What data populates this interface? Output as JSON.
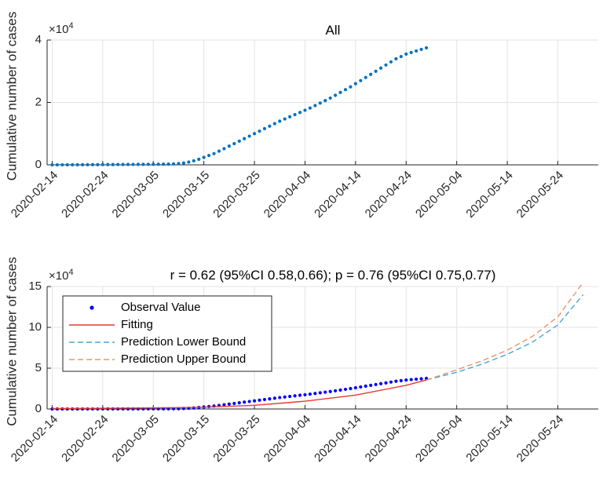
{
  "chart_data": [
    {
      "type": "scatter",
      "title": "All",
      "ylabel": "Cumulative number of cases",
      "xlabel": "",
      "y_exponent_label": "×10^4",
      "y_exponent_base": "×10",
      "y_exponent_power": "4",
      "ylim": [
        0,
        40000
      ],
      "yticks": [
        0,
        20000,
        40000
      ],
      "ytick_labels": [
        "0",
        "2",
        "4"
      ],
      "xlim": [
        "2020-02-13",
        "2020-06-01"
      ],
      "xtick_labels": [
        "2020-02-14",
        "2020-02-24",
        "2020-03-05",
        "2020-03-15",
        "2020-03-25",
        "2020-04-04",
        "2020-04-14",
        "2020-04-24",
        "2020-05-04",
        "2020-05-14",
        "2020-05-24"
      ],
      "grid": true,
      "colors": {
        "points": "#0072bd"
      },
      "series": [
        {
          "x_start": "2020-02-14",
          "x_end": "2020-04-28",
          "step_days": 1,
          "values": [
            10,
            12,
            15,
            20,
            25,
            30,
            40,
            50,
            60,
            70,
            80,
            90,
            100,
            110,
            120,
            130,
            140,
            150,
            160,
            170,
            180,
            200,
            220,
            250,
            300,
            400,
            600,
            900,
            1300,
            1800,
            2400,
            3000,
            3600,
            4400,
            5200,
            6000,
            6800,
            7600,
            8400,
            9200,
            10000,
            10800,
            11600,
            12400,
            13200,
            14000,
            14700,
            15400,
            16100,
            16800,
            17500,
            18200,
            19000,
            19800,
            20600,
            21400,
            22300,
            23200,
            24100,
            25000,
            26000,
            27000,
            28000,
            29000,
            30000,
            31000,
            32000,
            33000,
            34000,
            34700,
            35500,
            36000,
            36500,
            37000,
            37500
          ]
        }
      ]
    },
    {
      "type": "line",
      "title": "r = 0.62 (95%CI 0.58,0.66); p = 0.76 (95%CI 0.75,0.77)",
      "ylabel": "Cumulative number of cases",
      "xlabel": "",
      "y_exponent_label": "×10^4",
      "y_exponent_base": "×10",
      "y_exponent_power": "4",
      "ylim": [
        0,
        150000
      ],
      "yticks": [
        0,
        50000,
        100000,
        150000
      ],
      "ytick_labels": [
        "0",
        "5",
        "10",
        "15"
      ],
      "xlim": [
        "2020-02-13",
        "2020-06-01"
      ],
      "xtick_labels": [
        "2020-02-14",
        "2020-02-24",
        "2020-03-05",
        "2020-03-15",
        "2020-03-25",
        "2020-04-04",
        "2020-04-14",
        "2020-04-24",
        "2020-05-04",
        "2020-05-14",
        "2020-05-24"
      ],
      "grid": true,
      "legend_position": "top-left",
      "series": [
        {
          "name": "Observal Value",
          "style": "points",
          "color": "#0000ff",
          "x_start": "2020-02-14",
          "x_end": "2020-04-28",
          "step_days": 1,
          "values": [
            10,
            12,
            15,
            20,
            25,
            30,
            40,
            50,
            60,
            70,
            80,
            90,
            100,
            110,
            120,
            130,
            140,
            150,
            160,
            170,
            180,
            200,
            220,
            250,
            300,
            400,
            600,
            900,
            1300,
            1800,
            2400,
            3000,
            3600,
            4400,
            5200,
            6000,
            6800,
            7600,
            8400,
            9200,
            10000,
            10800,
            11600,
            12400,
            13200,
            14000,
            14700,
            15400,
            16100,
            16800,
            17500,
            18200,
            19000,
            19800,
            20600,
            21400,
            22300,
            23200,
            24100,
            25000,
            26000,
            27000,
            28000,
            29000,
            30000,
            31000,
            32000,
            33000,
            34000,
            34700,
            35500,
            36000,
            36500,
            37000,
            37500
          ]
        },
        {
          "name": "Fitting",
          "style": "solid",
          "color": "#e8392e",
          "x": [
            "2020-02-14",
            "2020-02-24",
            "2020-03-05",
            "2020-03-15",
            "2020-03-25",
            "2020-04-04",
            "2020-04-14",
            "2020-04-24",
            "2020-04-28"
          ],
          "values": [
            600,
            800,
            1300,
            2200,
            4500,
            9500,
            17000,
            29000,
            35500
          ]
        },
        {
          "name": "Prediction Lower Bound",
          "style": "dashed",
          "color": "#4ba3d8",
          "x": [
            "2020-04-28",
            "2020-05-04",
            "2020-05-09",
            "2020-05-14",
            "2020-05-19",
            "2020-05-24",
            "2020-05-29"
          ],
          "values": [
            35500,
            45000,
            55000,
            67000,
            82000,
            103000,
            140000
          ]
        },
        {
          "name": "Prediction Upper Bound",
          "style": "dashed",
          "color": "#e8956a",
          "x": [
            "2020-04-28",
            "2020-05-04",
            "2020-05-09",
            "2020-05-14",
            "2020-05-19",
            "2020-05-24",
            "2020-05-29"
          ],
          "values": [
            35500,
            48000,
            59000,
            72000,
            89000,
            113000,
            155000
          ]
        }
      ]
    }
  ]
}
